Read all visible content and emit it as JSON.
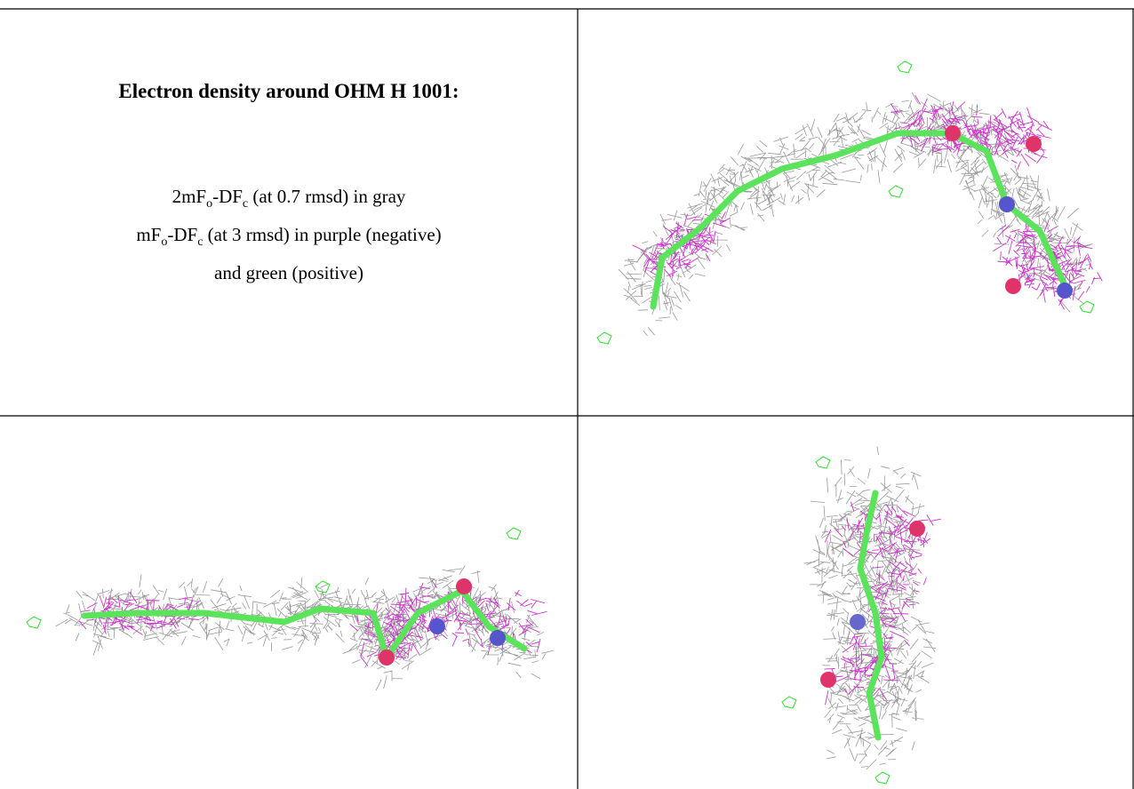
{
  "figure": {
    "title": "Electron density around OHM H 1001:",
    "legend": [
      [
        "2mF",
        "o",
        "-DF",
        "c",
        " (at 0.7 rmsd) in gray"
      ],
      [
        "mF",
        "o",
        "-DF",
        "c",
        " (at 3 rmsd) in purple (negative)"
      ],
      [
        "and green (positive)"
      ]
    ]
  }
}
